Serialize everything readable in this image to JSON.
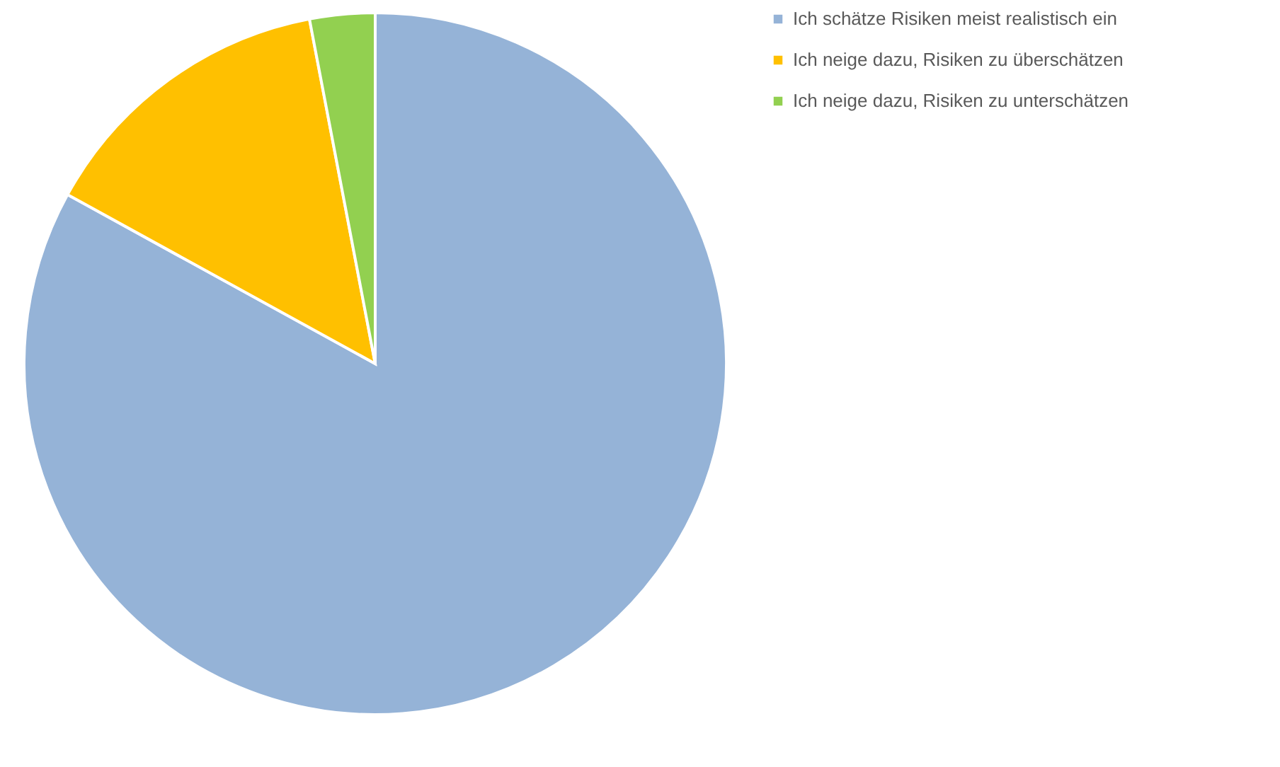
{
  "chart_data": {
    "type": "pie",
    "categories": [
      "Ich schätze Risiken meist realistisch ein",
      "Ich neige dazu, Risiken zu überschätzen",
      "Ich neige dazu, Risiken zu unterschätzen"
    ],
    "values": [
      83,
      14,
      3
    ],
    "colors": [
      "#95b3d7",
      "#ffc000",
      "#92d050"
    ],
    "legend": "right"
  }
}
